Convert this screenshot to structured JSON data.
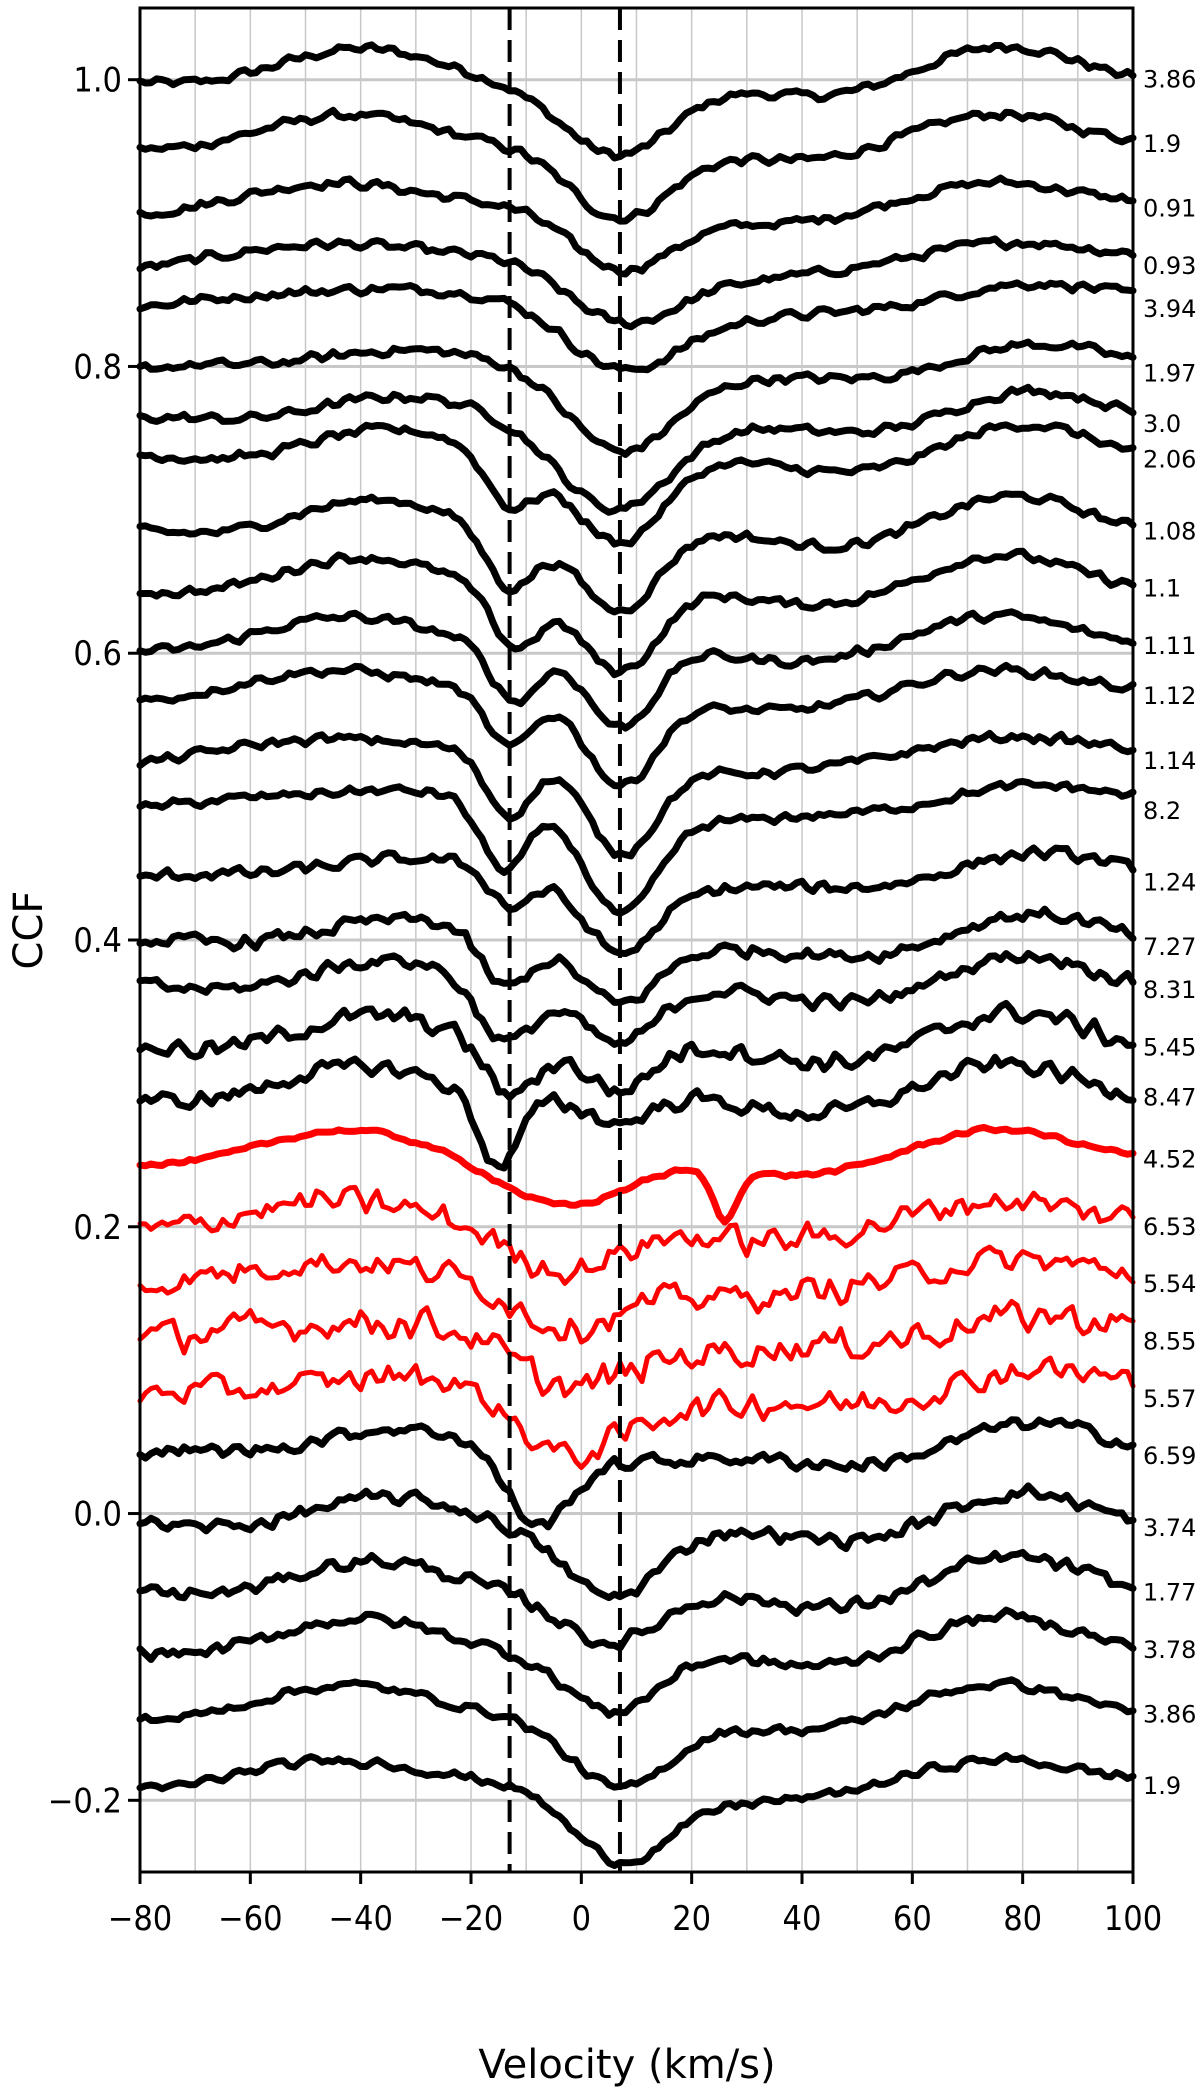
{
  "chart_data": {
    "type": "line",
    "xlabel": "Velocity (km/s)",
    "ylabel": "CCF",
    "xlim": [
      -80,
      100
    ],
    "ylim": [
      -0.25,
      1.05
    ],
    "x_ticks": [
      -80,
      -60,
      -40,
      -20,
      0,
      20,
      40,
      60,
      80,
      100
    ],
    "x_tick_labels": [
      "−80",
      "−60",
      "−40",
      "−20",
      "0",
      "20",
      "40",
      "60",
      "80",
      "100"
    ],
    "y_ticks": [
      -0.2,
      0.0,
      0.2,
      0.4,
      0.6,
      0.8,
      1.0
    ],
    "y_tick_labels": [
      "−0.2",
      "0.0",
      "0.2",
      "0.4",
      "0.6",
      "0.8",
      "1.0"
    ],
    "grid": "vertical every 10 km/s; horizontal at y ticks",
    "reference_lines_x": [
      -13,
      7
    ],
    "colors": {
      "normal": "#000000",
      "highlight": "#ff0000",
      "grid": "#c8c8c8"
    },
    "series": [
      {
        "label": "3.86",
        "offset": 1.0,
        "color": "black",
        "dip_center": 7,
        "dip_depth": 0.055,
        "dip_width": 14,
        "secondary_dip": null,
        "noise": 0.004
      },
      {
        "label": "1.9",
        "offset": 0.955,
        "color": "black",
        "dip_center": 7,
        "dip_depth": 0.055,
        "dip_width": 13,
        "secondary_dip": null,
        "noise": 0.004
      },
      {
        "label": "0.91",
        "offset": 0.91,
        "color": "black",
        "dip_center": 7,
        "dip_depth": 0.045,
        "dip_width": 13,
        "secondary_dip": null,
        "noise": 0.004
      },
      {
        "label": "0.93",
        "offset": 0.87,
        "color": "black",
        "dip_center": 7,
        "dip_depth": 0.04,
        "dip_width": 14,
        "secondary_dip": null,
        "noise": 0.004
      },
      {
        "label": "3.94",
        "offset": 0.84,
        "color": "black",
        "dip_center": 7,
        "dip_depth": 0.04,
        "dip_width": 14,
        "secondary_dip": null,
        "noise": 0.004
      },
      {
        "label": "1.97",
        "offset": 0.795,
        "color": "black",
        "dip_center": 7,
        "dip_depth": 0.05,
        "dip_width": 13,
        "secondary_dip": null,
        "noise": 0.004
      },
      {
        "label": "3.0",
        "offset": 0.76,
        "color": "black",
        "dip_center": 6,
        "dip_depth": 0.055,
        "dip_width": 14,
        "secondary_dip": null,
        "noise": 0.004
      },
      {
        "label": "2.06",
        "offset": 0.735,
        "color": "black",
        "dip_center": 7,
        "dip_depth": 0.055,
        "dip_width": 11,
        "secondary_dip": [
          -13,
          0.035,
          6
        ],
        "noise": 0.004
      },
      {
        "label": "1.08",
        "offset": 0.685,
        "color": "black",
        "dip_center": 7,
        "dip_depth": 0.055,
        "dip_width": 10,
        "secondary_dip": [
          -13,
          0.04,
          6
        ],
        "noise": 0.004
      },
      {
        "label": "1.1",
        "offset": 0.645,
        "color": "black",
        "dip_center": 7,
        "dip_depth": 0.06,
        "dip_width": 10,
        "secondary_dip": [
          -12,
          0.04,
          6
        ],
        "noise": 0.004
      },
      {
        "label": "1.11",
        "offset": 0.605,
        "color": "black",
        "dip_center": 7,
        "dip_depth": 0.06,
        "dip_width": 9,
        "secondary_dip": [
          -12,
          0.04,
          6
        ],
        "noise": 0.004
      },
      {
        "label": "1.12",
        "offset": 0.57,
        "color": "black",
        "dip_center": 7,
        "dip_depth": 0.065,
        "dip_width": 9,
        "secondary_dip": [
          -13,
          0.04,
          6
        ],
        "noise": 0.004
      },
      {
        "label": "1.14",
        "offset": 0.525,
        "color": "black",
        "dip_center": 7,
        "dip_depth": 0.065,
        "dip_width": 9,
        "secondary_dip": [
          -13,
          0.045,
          6
        ],
        "noise": 0.004
      },
      {
        "label": "8.2",
        "offset": 0.49,
        "color": "black",
        "dip_center": 7,
        "dip_depth": 0.07,
        "dip_width": 9,
        "secondary_dip": [
          -14,
          0.05,
          6
        ],
        "noise": 0.004
      },
      {
        "label": "1.24",
        "offset": 0.44,
        "color": "black",
        "dip_center": 7,
        "dip_depth": 0.045,
        "dip_width": 9,
        "secondary_dip": [
          -13,
          0.025,
          5
        ],
        "noise": 0.005
      },
      {
        "label": "7.27",
        "offset": 0.395,
        "color": "black",
        "dip_center": 7,
        "dip_depth": 0.035,
        "dip_width": 9,
        "secondary_dip": [
          -14,
          0.035,
          6
        ],
        "noise": 0.006
      },
      {
        "label": "8.31",
        "offset": 0.365,
        "color": "black",
        "dip_center": 7,
        "dip_depth": 0.035,
        "dip_width": 9,
        "secondary_dip": [
          -14,
          0.04,
          7
        ],
        "noise": 0.006
      },
      {
        "label": "5.45",
        "offset": 0.325,
        "color": "black",
        "dip_center": 7,
        "dip_depth": 0.03,
        "dip_width": 8,
        "secondary_dip": [
          -13,
          0.035,
          6
        ],
        "noise": 0.008
      },
      {
        "label": "8.47",
        "offset": 0.29,
        "color": "black",
        "dip_center": 7,
        "dip_depth": 0.02,
        "dip_width": 8,
        "secondary_dip": [
          -15,
          0.05,
          5
        ],
        "noise": 0.007
      },
      {
        "label": "4.52",
        "offset": 0.247,
        "color": "red",
        "dip_center": -2,
        "dip_depth": 0.035,
        "dip_width": 16,
        "secondary_dip": [
          26,
          0.035,
          3
        ],
        "noise": 0.002
      },
      {
        "label": "6.53",
        "offset": 0.2,
        "color": "red",
        "dip_center": -3,
        "dip_depth": 0.035,
        "dip_width": 14,
        "secondary_dip": null,
        "noise": 0.012
      },
      {
        "label": "5.54",
        "offset": 0.16,
        "color": "red",
        "dip_center": -3,
        "dip_depth": 0.035,
        "dip_width": 14,
        "secondary_dip": null,
        "noise": 0.012
      },
      {
        "label": "8.55",
        "offset": 0.12,
        "color": "red",
        "dip_center": -3,
        "dip_depth": 0.035,
        "dip_width": 14,
        "secondary_dip": null,
        "noise": 0.014
      },
      {
        "label": "5.57",
        "offset": 0.08,
        "color": "red",
        "dip_center": -3,
        "dip_depth": 0.04,
        "dip_width": 13,
        "secondary_dip": null,
        "noise": 0.012
      },
      {
        "label": "6.59",
        "offset": 0.04,
        "color": "black",
        "dip_center": -8,
        "dip_depth": 0.05,
        "dip_width": 8,
        "secondary_dip": null,
        "noise": 0.006
      },
      {
        "label": "3.74",
        "offset": -0.01,
        "color": "black",
        "dip_center": 6,
        "dip_depth": 0.045,
        "dip_width": 12,
        "secondary_dip": null,
        "noise": 0.006
      },
      {
        "label": "1.77",
        "offset": -0.055,
        "color": "black",
        "dip_center": 6,
        "dip_depth": 0.035,
        "dip_width": 12,
        "secondary_dip": null,
        "noise": 0.006
      },
      {
        "label": "3.78",
        "offset": -0.095,
        "color": "black",
        "dip_center": 6,
        "dip_depth": 0.045,
        "dip_width": 12,
        "secondary_dip": null,
        "noise": 0.005
      },
      {
        "label": "3.86",
        "offset": -0.14,
        "color": "black",
        "dip_center": 7,
        "dip_depth": 0.055,
        "dip_width": 13,
        "secondary_dip": null,
        "noise": 0.004
      },
      {
        "label": "1.9",
        "offset": -0.19,
        "color": "black",
        "dip_center": 7,
        "dip_depth": 0.055,
        "dip_width": 13,
        "secondary_dip": null,
        "noise": 0.004
      }
    ]
  }
}
